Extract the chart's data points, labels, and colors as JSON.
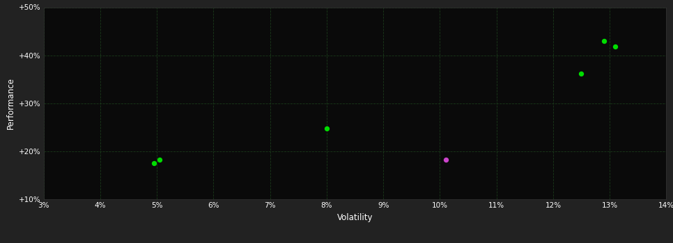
{
  "background_color": "#222222",
  "plot_bg_color": "#0a0a0a",
  "grid_color": "#1a3a1a",
  "text_color": "#ffffff",
  "xlabel": "Volatility",
  "ylabel": "Performance",
  "xlim": [
    0.03,
    0.14
  ],
  "ylim": [
    0.1,
    0.5
  ],
  "xticks": [
    0.03,
    0.04,
    0.05,
    0.06,
    0.07,
    0.08,
    0.09,
    0.1,
    0.11,
    0.12,
    0.13,
    0.14
  ],
  "yticks": [
    0.1,
    0.2,
    0.3,
    0.4,
    0.5
  ],
  "ytick_labels": [
    "+10%",
    "+20%",
    "+30%",
    "+40%",
    "+50%"
  ],
  "xtick_labels": [
    "3%",
    "4%",
    "5%",
    "6%",
    "7%",
    "8%",
    "9%",
    "10%",
    "11%",
    "12%",
    "13%",
    "14%"
  ],
  "green_points": [
    [
      0.0495,
      0.175
    ],
    [
      0.0505,
      0.183
    ],
    [
      0.08,
      0.248
    ],
    [
      0.125,
      0.362
    ],
    [
      0.129,
      0.43
    ],
    [
      0.131,
      0.418
    ]
  ],
  "magenta_points": [
    [
      0.101,
      0.182
    ]
  ],
  "green_color": "#00dd00",
  "magenta_color": "#cc44cc",
  "marker_size": 28
}
